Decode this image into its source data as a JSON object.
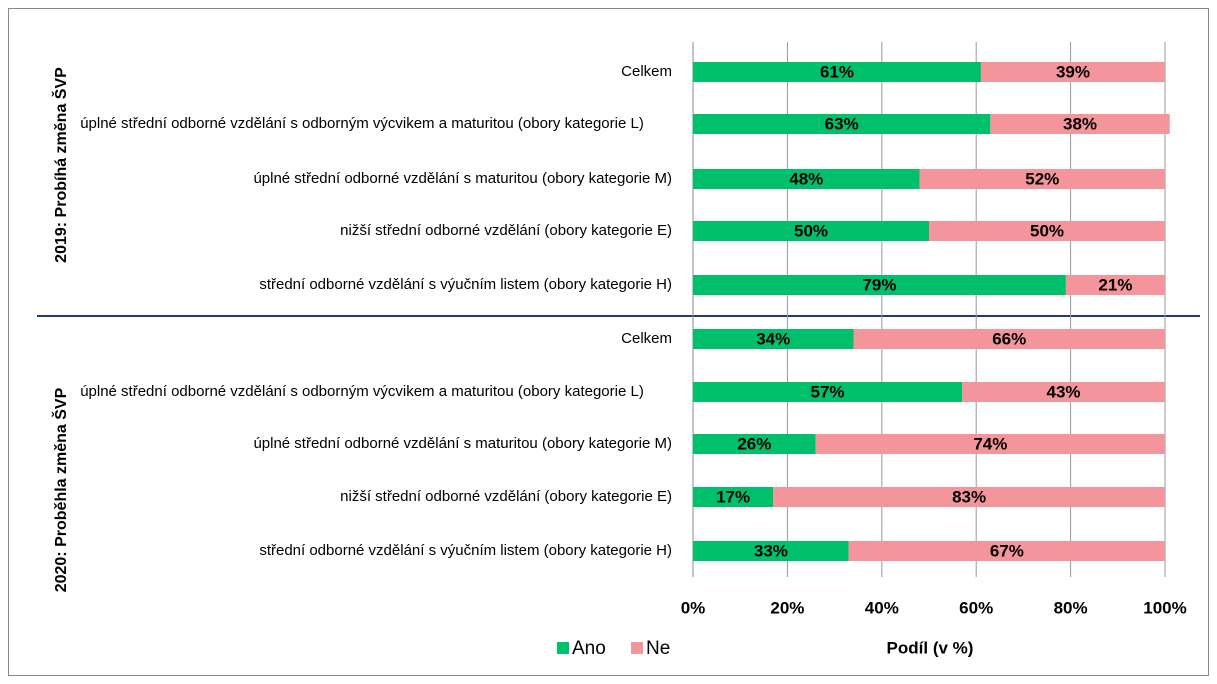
{
  "chart_data": {
    "type": "bar",
    "orientation": "horizontal",
    "stacked": true,
    "xlabel": "Podíl (v %)",
    "xlim": [
      0,
      100
    ],
    "xticks": [
      {
        "value": 0,
        "label": "0%"
      },
      {
        "value": 20,
        "label": "20%"
      },
      {
        "value": 40,
        "label": "40%"
      },
      {
        "value": 60,
        "label": "60%"
      },
      {
        "value": 80,
        "label": "80%"
      },
      {
        "value": 100,
        "label": "100%"
      }
    ],
    "grid": true,
    "legend": "bottom",
    "series": [
      {
        "name": "Ano",
        "color": "#00c06b"
      },
      {
        "name": "Ne",
        "color": "#f4949b"
      }
    ],
    "groups": [
      {
        "name": "2019: Probíhá změna ŠVP",
        "categories": [
          "Celkem",
          "úplné střední odborné vzdělání s odborným výcvikem a maturitou (obory kategorie L)",
          "úplné střední odborné vzdělání s maturitou (obory kategorie M)",
          "nižší střední odborné vzdělání (obory kategorie E)",
          "střední odborné vzdělání s výučním listem (obory kategorie H)"
        ],
        "series": [
          {
            "values": [
              61,
              63,
              48,
              50,
              79
            ],
            "value_labels": [
              "61%",
              "63%",
              "48%",
              "50%",
              "79%"
            ]
          },
          {
            "values": [
              39,
              38,
              52,
              50,
              21
            ],
            "value_labels": [
              "39%",
              "38%",
              "52%",
              "50%",
              "21%"
            ]
          }
        ]
      },
      {
        "name": "2020: Proběhla změna ŠVP",
        "categories": [
          "Celkem",
          "úplné střední odborné vzdělání s odborným výcvikem a maturitou (obory kategorie L)",
          "úplné střední odborné vzdělání s maturitou (obory kategorie M)",
          "nižší střední odborné vzdělání (obory kategorie E)",
          "střední odborné vzdělání s výučním listem (obory kategorie H)"
        ],
        "series": [
          {
            "values": [
              34,
              57,
              26,
              17,
              33
            ],
            "value_labels": [
              "34%",
              "57%",
              "26%",
              "17%",
              "33%"
            ]
          },
          {
            "values": [
              66,
              43,
              74,
              83,
              67
            ],
            "value_labels": [
              "66%",
              "43%",
              "74%",
              "83%",
              "67%"
            ]
          }
        ]
      }
    ]
  }
}
